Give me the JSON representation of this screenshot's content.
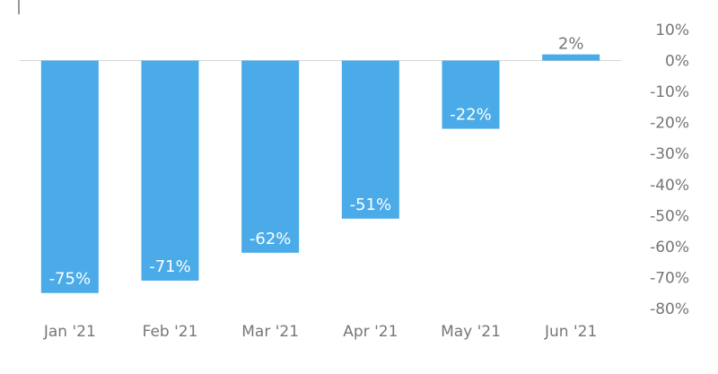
{
  "colors": {
    "bar": "#4aabe8",
    "zero_line": "#d4d4d4",
    "axis_text": "#767676",
    "label_inside": "#ffffff"
  },
  "chart_data": {
    "type": "bar",
    "title": "",
    "xlabel": "",
    "ylabel": "",
    "categories": [
      "Jan '21",
      "Feb '21",
      "Mar '21",
      "Apr '21",
      "May '21",
      "Jun '21"
    ],
    "values": [
      -75,
      -71,
      -62,
      -51,
      -22,
      2
    ],
    "value_labels": [
      "-75%",
      "-71%",
      "-62%",
      "-51%",
      "-22%",
      "2%"
    ],
    "ylim": [
      -80,
      10
    ],
    "yticks": [
      10,
      0,
      -10,
      -20,
      -30,
      -40,
      -50,
      -60,
      -70,
      -80
    ],
    "ytick_labels": [
      "10%",
      "0%",
      "-10%",
      "-20%",
      "-30%",
      "-40%",
      "-50%",
      "-60%",
      "-70%",
      "-80%"
    ],
    "y_axis_side": "right",
    "grid": false,
    "legend": "none"
  }
}
